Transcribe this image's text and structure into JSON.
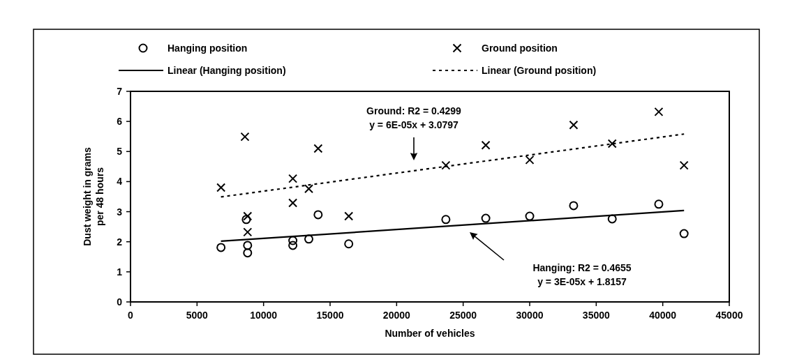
{
  "chart_data": {
    "type": "scatter",
    "xlabel": "Number of vehicles",
    "ylabel": "Dust weight in grams\nper 48 hours",
    "xlim": [
      0,
      45000
    ],
    "xticks": [
      0,
      5000,
      10000,
      15000,
      20000,
      25000,
      30000,
      35000,
      40000,
      45000
    ],
    "ylim": [
      0,
      7
    ],
    "yticks": [
      0,
      1,
      2,
      3,
      4,
      5,
      6,
      7
    ],
    "grid": false,
    "legend": "top",
    "series": [
      {
        "name": "Hanging position",
        "marker": "circle",
        "color": "#000000",
        "x": [
          6800,
          8700,
          8800,
          8800,
          12200,
          12200,
          13400,
          14100,
          16400,
          23700,
          26700,
          30000,
          33300,
          36200,
          39700,
          41600
        ],
        "values": [
          1.81,
          2.74,
          1.88,
          1.63,
          2.04,
          1.88,
          2.09,
          2.9,
          1.93,
          2.74,
          2.78,
          2.85,
          3.2,
          2.76,
          3.25,
          2.27
        ]
      },
      {
        "name": "Ground position",
        "marker": "cross",
        "color": "#000000",
        "x": [
          6800,
          8600,
          8800,
          8800,
          12200,
          12200,
          13400,
          14100,
          16400,
          23700,
          26700,
          30000,
          33300,
          36200,
          39700,
          41600
        ],
        "values": [
          3.8,
          5.49,
          2.85,
          2.32,
          4.1,
          3.29,
          3.76,
          5.1,
          2.85,
          4.54,
          5.21,
          4.72,
          5.88,
          5.26,
          6.32,
          4.54
        ]
      },
      {
        "name": "Linear (Hanging position)",
        "type": "line",
        "line_style": "solid",
        "color": "#000000",
        "x": [
          6800,
          41600
        ],
        "values": [
          2.02,
          3.04
        ]
      },
      {
        "name": "Linear (Ground position)",
        "type": "line",
        "line_style": "dotted",
        "color": "#000000",
        "x": [
          6800,
          41600
        ],
        "values": [
          3.49,
          5.58
        ]
      }
    ],
    "annotations": [
      "Ground: R2 = 0.4299\ny = 6E-05x + 3.0797",
      "Hanging: R2 = 0.4655\ny = 3E-05x + 1.8157"
    ]
  }
}
